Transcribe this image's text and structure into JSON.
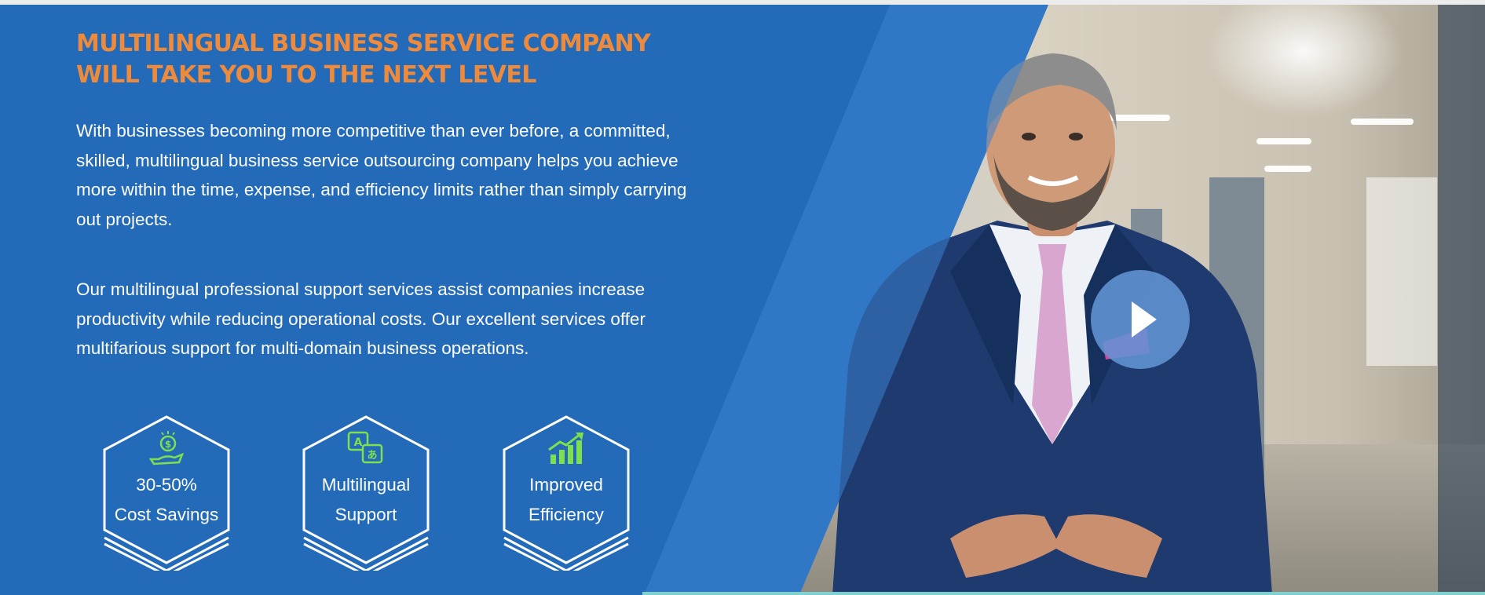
{
  "hero": {
    "headline": "MULTILINGUAL BUSINESS SERVICE COMPANY WILL TAKE YOU TO THE NEXT LEVEL",
    "paragraph_1": "With businesses becoming more competitive than ever before, a committed, skilled, multilingual business service outsourcing company helps you achieve more within the time, expense, and efficiency limits rather than simply carrying out projects.",
    "paragraph_2": "Our multilingual professional support services assist companies increase productivity while reducing operational costs. Our excellent services offer multifarious support for multi-domain business operations."
  },
  "features": [
    {
      "icon": "money-hand-icon",
      "line1": "30-50%",
      "line2": "Cost Savings"
    },
    {
      "icon": "translate-icon",
      "line1": "Multilingual",
      "line2": "Support"
    },
    {
      "icon": "growth-chart-icon",
      "line1": "Improved",
      "line2": "Efficiency"
    }
  ],
  "video": {
    "play_icon": "play-icon"
  },
  "colors": {
    "background": "#236ab9",
    "headline": "#ed8a3b",
    "text": "#ffffff",
    "icon_accent": "#7ee04c",
    "play_button": "#6294d4"
  }
}
